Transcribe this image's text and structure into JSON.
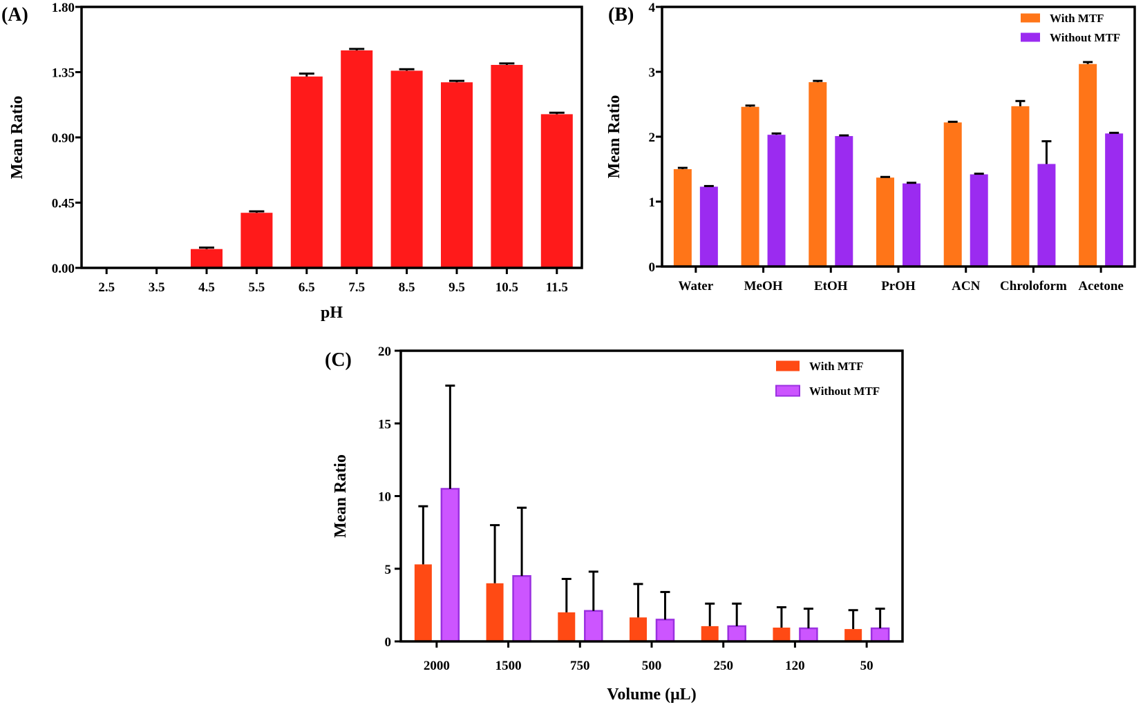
{
  "chart_data": [
    {
      "panel": "(A)",
      "type": "bar",
      "xlabel": "pH",
      "ylabel": "Mean Ratio",
      "ylim": [
        0,
        1.8
      ],
      "yticks": [
        "0.00",
        "0.45",
        "0.90",
        "1.35",
        "1.80"
      ],
      "categories": [
        "2.5",
        "3.5",
        "4.5",
        "5.5",
        "6.5",
        "7.5",
        "8.5",
        "9.5",
        "10.5",
        "11.5"
      ],
      "series": [
        {
          "values": [
            0,
            0,
            0.13,
            0.38,
            1.32,
            1.5,
            1.36,
            1.28,
            1.4,
            1.06
          ],
          "errors": [
            0,
            0,
            0.01,
            0.01,
            0.02,
            0.01,
            0.01,
            0.01,
            0.01,
            0.01
          ],
          "color": "#ff1a1a"
        }
      ],
      "grid": false
    },
    {
      "panel": "(B)",
      "type": "bar",
      "xlabel": "",
      "ylabel": "Mean Ratio",
      "ylim": [
        0,
        4
      ],
      "yticks": [
        "0",
        "1",
        "2",
        "3",
        "4"
      ],
      "categories": [
        "Water",
        "MeOH",
        "EtOH",
        "PrOH",
        "ACN",
        "Chroloform",
        "Acetone"
      ],
      "series": [
        {
          "name": "With MTF",
          "values": [
            1.5,
            2.46,
            2.84,
            1.37,
            2.22,
            2.47,
            3.12
          ],
          "errors": [
            0.02,
            0.02,
            0.02,
            0.01,
            0.01,
            0.08,
            0.03
          ],
          "color": "#ff7518"
        },
        {
          "name": "Without MTF",
          "values": [
            1.23,
            2.03,
            2.01,
            1.28,
            1.42,
            1.58,
            2.05
          ],
          "errors": [
            0.01,
            0.02,
            0.01,
            0.01,
            0.01,
            0.35,
            0.01
          ],
          "color": "#9b2bf0"
        }
      ],
      "legend": "top-right",
      "grid": false
    },
    {
      "panel": "(C)",
      "type": "bar",
      "xlabel": "Volume (μL)",
      "ylabel": "Mean Ratio",
      "ylim": [
        0,
        20
      ],
      "yticks": [
        "0",
        "5",
        "10",
        "15",
        "20"
      ],
      "categories": [
        "2000",
        "1500",
        "750",
        "500",
        "250",
        "120",
        "50"
      ],
      "series": [
        {
          "name": "With MTF",
          "values": [
            5.3,
            4.0,
            2.0,
            1.65,
            1.05,
            0.95,
            0.85
          ],
          "errors": [
            4.0,
            4.0,
            2.3,
            2.3,
            1.55,
            1.4,
            1.3
          ],
          "color": "#ff4a14"
        },
        {
          "name": "Without MTF",
          "values": [
            10.5,
            4.5,
            2.1,
            1.5,
            1.05,
            0.9,
            0.9
          ],
          "errors": [
            7.1,
            4.7,
            2.7,
            1.9,
            1.55,
            1.35,
            1.35
          ],
          "color": "#cc55ff",
          "edge": "#9b30e0"
        }
      ],
      "legend": "top-right",
      "grid": false
    }
  ]
}
